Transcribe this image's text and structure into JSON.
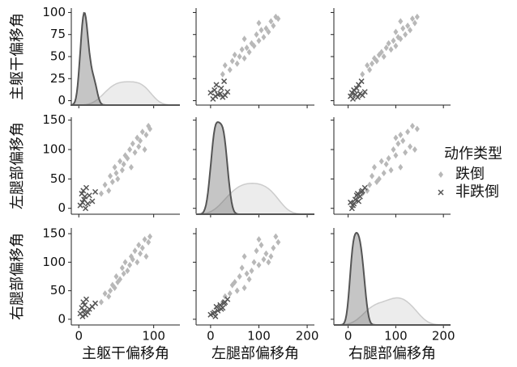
{
  "chart_data": {
    "type": "pairplot",
    "variables": [
      {
        "name": "主躯干偏移角",
        "xlim": [
          -10,
          135
        ],
        "xticks": [
          0,
          100
        ],
        "ylim": [
          -5,
          105
        ],
        "yticks": [
          0,
          25,
          50,
          75,
          100
        ]
      },
      {
        "name": "左腿部偏移角",
        "xlim": [
          -30,
          215
        ],
        "xticks": [
          0,
          100,
          200
        ],
        "ylim": [
          -10,
          155
        ],
        "yticks": [
          0,
          50,
          100,
          150
        ]
      },
      {
        "name": "右腿部偏移角",
        "xlim": [
          -30,
          215
        ],
        "xticks": [
          0,
          100,
          200
        ],
        "ylim": [
          -10,
          160
        ],
        "yticks": [
          0,
          50,
          100,
          150
        ]
      }
    ],
    "legend_title": "动作类型",
    "legend": "right",
    "series": [
      {
        "name": "跌倒",
        "color": "#b8b8b8",
        "marker": "diamond",
        "values": [
          [
            30,
            35,
            40,
            42,
            45,
            48,
            50,
            52,
            55,
            58,
            60,
            62,
            65,
            68,
            70,
            72,
            75,
            78,
            80,
            82,
            85,
            88,
            90,
            93,
            95
          ],
          [
            25,
            40,
            30,
            55,
            45,
            70,
            60,
            50,
            80,
            65,
            75,
            90,
            85,
            100,
            70,
            110,
            95,
            120,
            105,
            115,
            130,
            100,
            125,
            140,
            135
          ],
          [
            30,
            45,
            40,
            50,
            60,
            55,
            75,
            65,
            70,
            90,
            80,
            100,
            85,
            95,
            110,
            105,
            120,
            100,
            130,
            115,
            125,
            140,
            110,
            135,
            145
          ]
        ]
      },
      {
        "name": "非跌倒",
        "color": "#555555",
        "marker": "x",
        "values": [
          [
            2,
            4,
            5,
            6,
            7,
            8,
            9,
            10,
            12,
            14,
            18,
            22
          ],
          [
            5,
            25,
            10,
            30,
            15,
            20,
            0,
            35,
            8,
            22,
            12,
            28
          ],
          [
            10,
            20,
            5,
            30,
            15,
            25,
            8,
            35,
            12,
            18,
            22,
            28
          ]
        ]
      }
    ]
  }
}
